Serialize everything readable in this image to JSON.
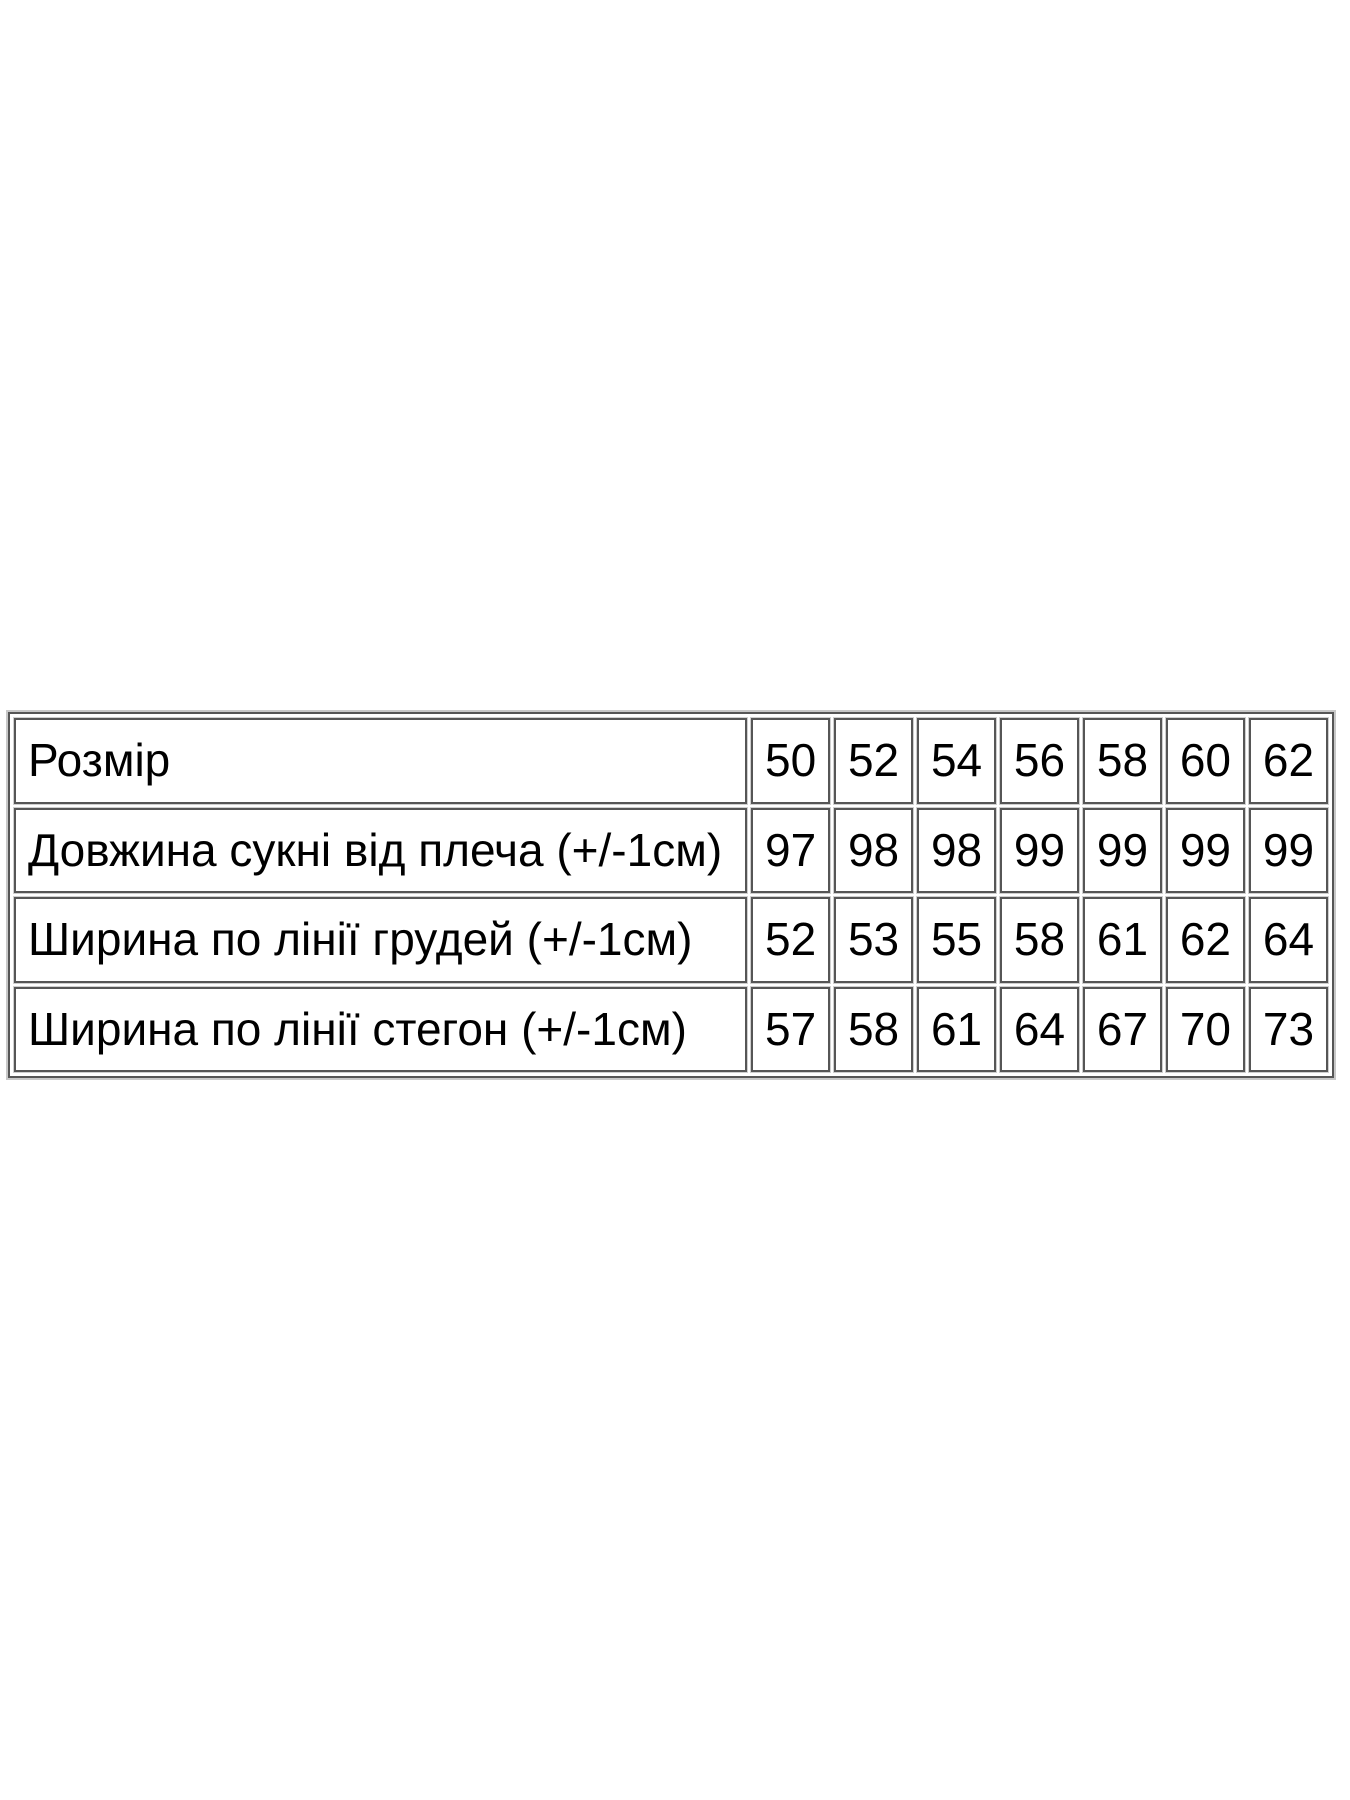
{
  "table": {
    "background": "#ffffff",
    "border_color": "#565656",
    "border_highlight": "#c8c8c8",
    "text_color": "#000000",
    "rows": [
      {
        "label": "Розмір",
        "values": [
          "50",
          "52",
          "54",
          "56",
          "58",
          "60",
          "62"
        ]
      },
      {
        "label": "Довжина сукні від плеча (+/-1см)",
        "values": [
          "97",
          "98",
          "98",
          "99",
          "99",
          "99",
          "99"
        ]
      },
      {
        "label": "Ширина по лінії грудей (+/-1см)",
        "values": [
          "52",
          "53",
          "55",
          "58",
          "61",
          "62",
          "64"
        ]
      },
      {
        "label": "Ширина по лінії стегон (+/-1см)",
        "values": [
          "57",
          "58",
          "61",
          "64",
          "67",
          "70",
          "73"
        ]
      }
    ]
  }
}
